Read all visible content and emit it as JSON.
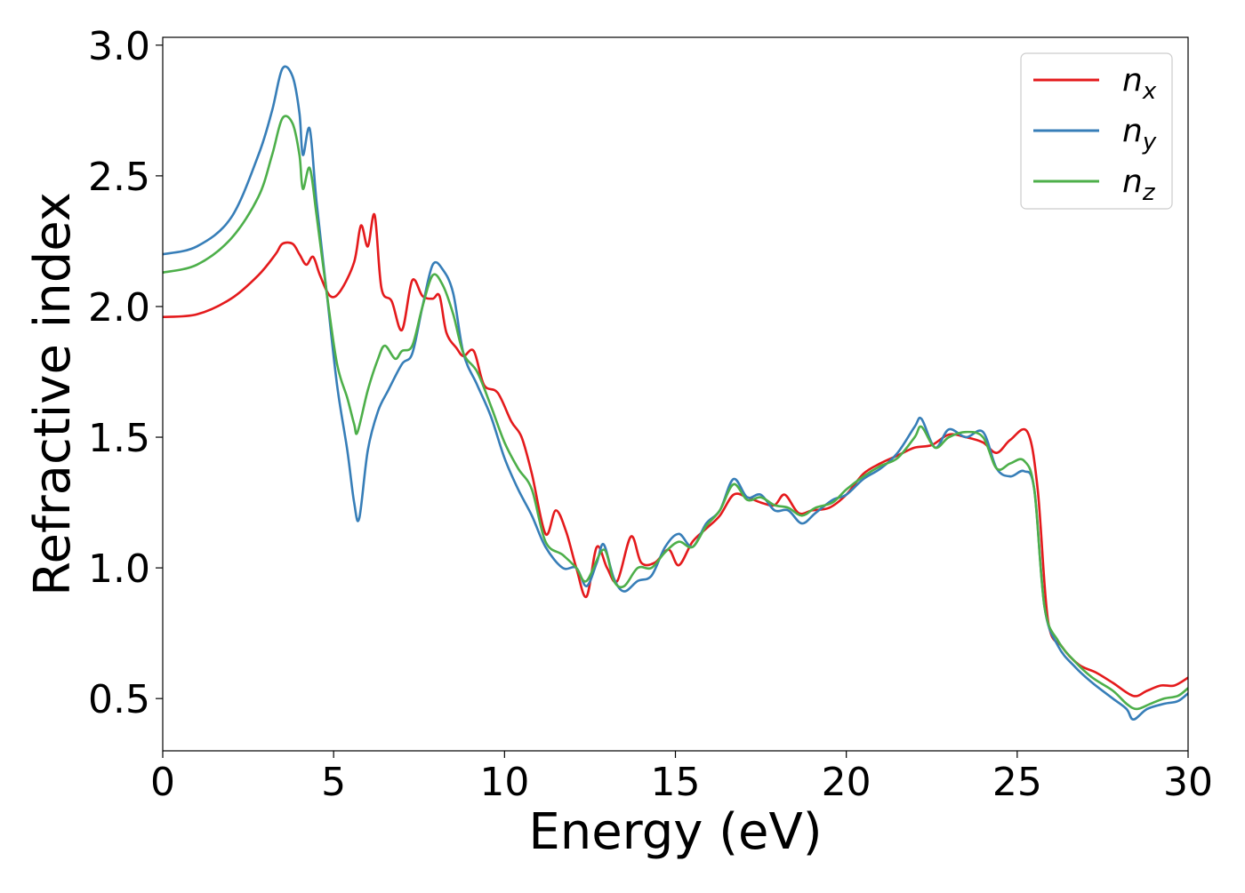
{
  "chart_data": {
    "type": "line",
    "title": "",
    "xlabel": "Energy (eV)",
    "ylabel": "Refractive index",
    "xlim": [
      0,
      30
    ],
    "ylim": [
      0.3,
      3.03
    ],
    "xticks": [
      0,
      5,
      10,
      15,
      20,
      25,
      30
    ],
    "xtick_labels": [
      "0",
      "5",
      "10",
      "15",
      "20",
      "25",
      "30"
    ],
    "yticks": [
      0.5,
      1.0,
      1.5,
      2.0,
      2.5,
      3.0
    ],
    "ytick_labels": [
      "0.5",
      "1.0",
      "1.5",
      "2.0",
      "2.5",
      "3.0"
    ],
    "grid": false,
    "legend_position": "top-right",
    "series": [
      {
        "name": "n_x",
        "label_base": "n",
        "label_sub": "x",
        "color": "#e41a1c",
        "points": [
          [
            0,
            1.96
          ],
          [
            1,
            1.97
          ],
          [
            2,
            2.03
          ],
          [
            2.8,
            2.12
          ],
          [
            3.3,
            2.2
          ],
          [
            3.5,
            2.24
          ],
          [
            3.8,
            2.24
          ],
          [
            4.0,
            2.2
          ],
          [
            4.2,
            2.16
          ],
          [
            4.4,
            2.19
          ],
          [
            4.6,
            2.12
          ],
          [
            4.9,
            2.04
          ],
          [
            5.2,
            2.06
          ],
          [
            5.6,
            2.17
          ],
          [
            5.8,
            2.31
          ],
          [
            6.0,
            2.23
          ],
          [
            6.2,
            2.35
          ],
          [
            6.4,
            2.07
          ],
          [
            6.7,
            2.02
          ],
          [
            7.0,
            1.91
          ],
          [
            7.3,
            2.1
          ],
          [
            7.6,
            2.04
          ],
          [
            7.9,
            2.03
          ],
          [
            8.1,
            2.04
          ],
          [
            8.3,
            1.9
          ],
          [
            8.6,
            1.84
          ],
          [
            8.8,
            1.81
          ],
          [
            9.1,
            1.83
          ],
          [
            9.4,
            1.7
          ],
          [
            9.8,
            1.67
          ],
          [
            10.2,
            1.56
          ],
          [
            10.5,
            1.5
          ],
          [
            10.8,
            1.36
          ],
          [
            11.2,
            1.13
          ],
          [
            11.5,
            1.22
          ],
          [
            11.8,
            1.14
          ],
          [
            12.1,
            1.0
          ],
          [
            12.4,
            0.89
          ],
          [
            12.7,
            1.08
          ],
          [
            13.0,
            1.0
          ],
          [
            13.3,
            0.95
          ],
          [
            13.7,
            1.12
          ],
          [
            14.0,
            1.02
          ],
          [
            14.4,
            1.02
          ],
          [
            14.8,
            1.07
          ],
          [
            15.1,
            1.01
          ],
          [
            15.5,
            1.1
          ],
          [
            15.9,
            1.15
          ],
          [
            16.3,
            1.2
          ],
          [
            16.7,
            1.28
          ],
          [
            17.1,
            1.27
          ],
          [
            17.5,
            1.25
          ],
          [
            17.9,
            1.24
          ],
          [
            18.2,
            1.28
          ],
          [
            18.6,
            1.21
          ],
          [
            19.0,
            1.22
          ],
          [
            19.5,
            1.23
          ],
          [
            20.0,
            1.28
          ],
          [
            20.5,
            1.36
          ],
          [
            21.0,
            1.4
          ],
          [
            21.5,
            1.43
          ],
          [
            22.0,
            1.46
          ],
          [
            22.5,
            1.47
          ],
          [
            23.0,
            1.51
          ],
          [
            23.5,
            1.5
          ],
          [
            24.0,
            1.48
          ],
          [
            24.4,
            1.44
          ],
          [
            24.8,
            1.49
          ],
          [
            25.3,
            1.52
          ],
          [
            25.6,
            1.3
          ],
          [
            25.9,
            0.8
          ],
          [
            26.3,
            0.7
          ],
          [
            26.8,
            0.63
          ],
          [
            27.3,
            0.6
          ],
          [
            27.8,
            0.56
          ],
          [
            28.4,
            0.51
          ],
          [
            28.8,
            0.53
          ],
          [
            29.2,
            0.55
          ],
          [
            29.6,
            0.55
          ],
          [
            30.0,
            0.58
          ]
        ]
      },
      {
        "name": "n_y",
        "label_base": "n",
        "label_sub": "y",
        "color": "#377eb8",
        "points": [
          [
            0,
            2.2
          ],
          [
            1,
            2.23
          ],
          [
            2,
            2.34
          ],
          [
            2.8,
            2.58
          ],
          [
            3.2,
            2.75
          ],
          [
            3.5,
            2.91
          ],
          [
            3.8,
            2.88
          ],
          [
            4.0,
            2.74
          ],
          [
            4.1,
            2.58
          ],
          [
            4.3,
            2.68
          ],
          [
            4.5,
            2.4
          ],
          [
            4.8,
            2.05
          ],
          [
            5.1,
            1.7
          ],
          [
            5.4,
            1.45
          ],
          [
            5.6,
            1.25
          ],
          [
            5.75,
            1.19
          ],
          [
            6.0,
            1.45
          ],
          [
            6.3,
            1.6
          ],
          [
            6.6,
            1.68
          ],
          [
            7.0,
            1.78
          ],
          [
            7.3,
            1.82
          ],
          [
            7.6,
            2.0
          ],
          [
            7.9,
            2.16
          ],
          [
            8.2,
            2.14
          ],
          [
            8.5,
            2.05
          ],
          [
            8.8,
            1.82
          ],
          [
            9.2,
            1.7
          ],
          [
            9.6,
            1.58
          ],
          [
            10.0,
            1.42
          ],
          [
            10.4,
            1.3
          ],
          [
            10.8,
            1.2
          ],
          [
            11.2,
            1.08
          ],
          [
            11.7,
            1.0
          ],
          [
            12.1,
            1.0
          ],
          [
            12.4,
            0.93
          ],
          [
            12.7,
            1.02
          ],
          [
            12.9,
            1.09
          ],
          [
            13.2,
            0.96
          ],
          [
            13.5,
            0.91
          ],
          [
            13.9,
            0.95
          ],
          [
            14.3,
            0.97
          ],
          [
            14.7,
            1.08
          ],
          [
            15.1,
            1.13
          ],
          [
            15.5,
            1.08
          ],
          [
            15.9,
            1.17
          ],
          [
            16.3,
            1.22
          ],
          [
            16.7,
            1.34
          ],
          [
            17.1,
            1.27
          ],
          [
            17.5,
            1.28
          ],
          [
            17.9,
            1.22
          ],
          [
            18.3,
            1.22
          ],
          [
            18.7,
            1.17
          ],
          [
            19.1,
            1.21
          ],
          [
            19.6,
            1.26
          ],
          [
            20.0,
            1.28
          ],
          [
            20.5,
            1.34
          ],
          [
            21.0,
            1.38
          ],
          [
            21.5,
            1.44
          ],
          [
            22.0,
            1.54
          ],
          [
            22.2,
            1.57
          ],
          [
            22.6,
            1.46
          ],
          [
            23.0,
            1.53
          ],
          [
            23.5,
            1.5
          ],
          [
            24.0,
            1.52
          ],
          [
            24.4,
            1.38
          ],
          [
            24.8,
            1.35
          ],
          [
            25.2,
            1.37
          ],
          [
            25.5,
            1.3
          ],
          [
            25.8,
            0.85
          ],
          [
            26.2,
            0.7
          ],
          [
            26.7,
            0.62
          ],
          [
            27.2,
            0.56
          ],
          [
            27.8,
            0.5
          ],
          [
            28.2,
            0.46
          ],
          [
            28.4,
            0.42
          ],
          [
            28.8,
            0.46
          ],
          [
            29.3,
            0.48
          ],
          [
            29.7,
            0.49
          ],
          [
            30.0,
            0.52
          ]
        ]
      },
      {
        "name": "n_z",
        "label_base": "n",
        "label_sub": "z",
        "color": "#4daf4a",
        "points": [
          [
            0,
            2.13
          ],
          [
            1,
            2.16
          ],
          [
            2,
            2.26
          ],
          [
            2.8,
            2.42
          ],
          [
            3.2,
            2.58
          ],
          [
            3.5,
            2.72
          ],
          [
            3.8,
            2.7
          ],
          [
            4.0,
            2.58
          ],
          [
            4.1,
            2.45
          ],
          [
            4.3,
            2.53
          ],
          [
            4.5,
            2.35
          ],
          [
            4.8,
            2.05
          ],
          [
            5.1,
            1.78
          ],
          [
            5.4,
            1.65
          ],
          [
            5.6,
            1.55
          ],
          [
            5.7,
            1.52
          ],
          [
            6.0,
            1.68
          ],
          [
            6.3,
            1.8
          ],
          [
            6.5,
            1.85
          ],
          [
            6.8,
            1.8
          ],
          [
            7.0,
            1.83
          ],
          [
            7.3,
            1.85
          ],
          [
            7.6,
            2.0
          ],
          [
            7.9,
            2.12
          ],
          [
            8.2,
            2.08
          ],
          [
            8.5,
            1.97
          ],
          [
            8.8,
            1.82
          ],
          [
            9.2,
            1.75
          ],
          [
            9.6,
            1.62
          ],
          [
            10.0,
            1.48
          ],
          [
            10.4,
            1.38
          ],
          [
            10.8,
            1.3
          ],
          [
            11.2,
            1.1
          ],
          [
            11.7,
            1.05
          ],
          [
            12.1,
            1.0
          ],
          [
            12.4,
            0.95
          ],
          [
            12.9,
            1.07
          ],
          [
            13.2,
            0.95
          ],
          [
            13.5,
            0.93
          ],
          [
            13.9,
            1.0
          ],
          [
            14.3,
            1.0
          ],
          [
            14.7,
            1.06
          ],
          [
            15.1,
            1.1
          ],
          [
            15.5,
            1.08
          ],
          [
            15.9,
            1.16
          ],
          [
            16.3,
            1.22
          ],
          [
            16.7,
            1.32
          ],
          [
            17.1,
            1.26
          ],
          [
            17.5,
            1.27
          ],
          [
            17.9,
            1.24
          ],
          [
            18.3,
            1.23
          ],
          [
            18.7,
            1.2
          ],
          [
            19.1,
            1.23
          ],
          [
            19.6,
            1.25
          ],
          [
            20.0,
            1.3
          ],
          [
            20.5,
            1.35
          ],
          [
            21.0,
            1.39
          ],
          [
            21.5,
            1.42
          ],
          [
            22.0,
            1.5
          ],
          [
            22.2,
            1.54
          ],
          [
            22.6,
            1.46
          ],
          [
            23.0,
            1.5
          ],
          [
            23.5,
            1.52
          ],
          [
            24.0,
            1.5
          ],
          [
            24.4,
            1.38
          ],
          [
            24.8,
            1.4
          ],
          [
            25.2,
            1.41
          ],
          [
            25.5,
            1.3
          ],
          [
            25.8,
            0.85
          ],
          [
            26.2,
            0.72
          ],
          [
            26.7,
            0.64
          ],
          [
            27.2,
            0.58
          ],
          [
            27.8,
            0.53
          ],
          [
            28.2,
            0.48
          ],
          [
            28.5,
            0.46
          ],
          [
            28.9,
            0.48
          ],
          [
            29.3,
            0.5
          ],
          [
            29.7,
            0.51
          ],
          [
            30.0,
            0.54
          ]
        ]
      }
    ]
  }
}
